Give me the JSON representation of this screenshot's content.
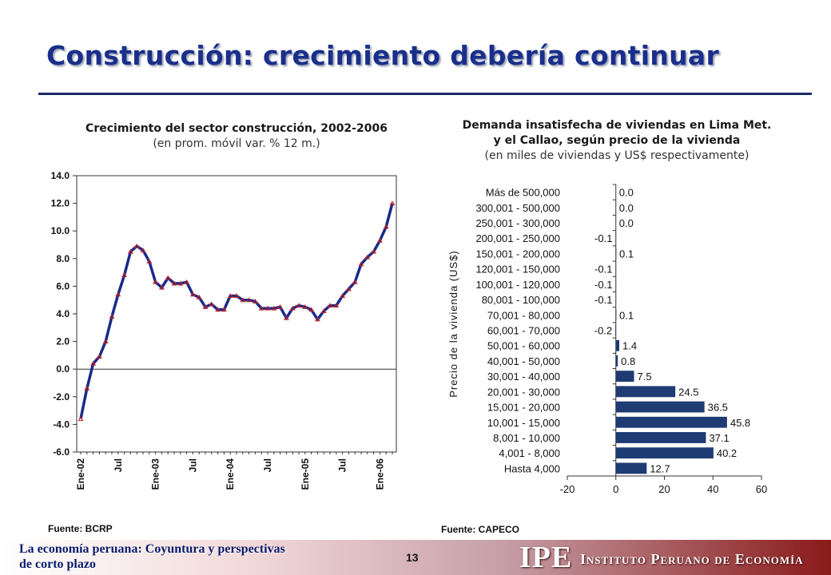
{
  "slide": {
    "title": "Construcción: crecimiento debería continuar",
    "page_number": "13",
    "footer_line1": "La economía peruana: Coyuntura y perspectivas",
    "footer_line2": "de corto plazo",
    "logo_abbr": "IPE",
    "logo_name": "Instituto Peruano de Economía"
  },
  "chart_data": [
    {
      "type": "line",
      "title": "Crecimiento del sector construcción, 2002-2006",
      "subtitle": "(en prom. móvil var. % 12 m.)",
      "source": "Fuente: BCRP",
      "ylim": [
        -6.0,
        14.0
      ],
      "y_ticks": [
        "14.0",
        "12.0",
        "10.0",
        "8.0",
        "6.0",
        "4.0",
        "2.0",
        "0.0",
        "-2.0",
        "-4.0",
        "-6.0"
      ],
      "x_tick_labels": [
        {
          "index": 0,
          "label": "Ene-02"
        },
        {
          "index": 6,
          "label": "Jul"
        },
        {
          "index": 12,
          "label": "Ene-03"
        },
        {
          "index": 18,
          "label": "Jul"
        },
        {
          "index": 24,
          "label": "Ene-04"
        },
        {
          "index": 30,
          "label": "Jul"
        },
        {
          "index": 36,
          "label": "Ene-05"
        },
        {
          "index": 42,
          "label": "Jul"
        },
        {
          "index": 48,
          "label": "Ene-06"
        }
      ],
      "series": [
        {
          "values": [
            -3.6,
            -1.4,
            0.4,
            0.9,
            2.0,
            3.8,
            5.4,
            6.8,
            8.5,
            8.9,
            8.6,
            7.8,
            6.3,
            5.9,
            6.6,
            6.2,
            6.2,
            6.3,
            5.4,
            5.2,
            4.5,
            4.7,
            4.3,
            4.3,
            5.3,
            5.3,
            5.0,
            5.0,
            4.9,
            4.4,
            4.4,
            4.4,
            4.5,
            3.7,
            4.4,
            4.6,
            4.5,
            4.3,
            3.6,
            4.2,
            4.6,
            4.6,
            5.3,
            5.8,
            6.3,
            7.6,
            8.1,
            8.5,
            9.3,
            10.3,
            12.0
          ],
          "color": "#1a2a8a",
          "marker_color": "#cc2222"
        }
      ]
    },
    {
      "type": "bar",
      "orientation": "horizontal",
      "title_line1": "Demanda insatisfecha de viviendas en Lima Met.",
      "title_line2": "y el Callao, según precio de la vivienda",
      "subtitle": "(en miles de viviendas y US$ respectivamente)",
      "source": "Fuente: CAPECO",
      "ylabel": "Precio de la vivienda (US$)",
      "xlim": [
        -20,
        60
      ],
      "x_ticks": [
        "-20",
        "0",
        "20",
        "40",
        "60"
      ],
      "categories": [
        "Más de 500,000",
        "300,001 - 500,000",
        "250,001 - 300,000",
        "200,001 - 250,000",
        "150,001 - 200,000",
        "120,001 - 150,000",
        "100,001 - 120,000",
        "80,001 - 100,000",
        "70,001 - 80,000",
        "60,001 - 70,000",
        "50,001 - 60,000",
        "40,001 - 50,000",
        "30,001 - 40,000",
        "20,001 - 30,000",
        "15,001 - 20,000",
        "10,001 - 15,000",
        "8,001 - 10,000",
        "4,001 - 8,000",
        "Hasta 4,000"
      ],
      "values": [
        0.0,
        0.0,
        0.0,
        -0.1,
        0.1,
        -0.1,
        -0.1,
        -0.1,
        0.1,
        -0.2,
        1.4,
        0.8,
        7.5,
        24.5,
        36.5,
        45.8,
        37.1,
        40.2,
        12.7
      ],
      "value_labels": [
        "0.0",
        "0.0",
        "0.0",
        "-0.1",
        "0.1",
        "-0.1",
        "-0.1",
        "-0.1",
        "0.1",
        "-0.2",
        "1.4",
        "0.8",
        "7.5",
        "24.5",
        "36.5",
        "45.8",
        "37.1",
        "40.2",
        "12.7"
      ],
      "bar_color": "#1f3b73"
    }
  ]
}
